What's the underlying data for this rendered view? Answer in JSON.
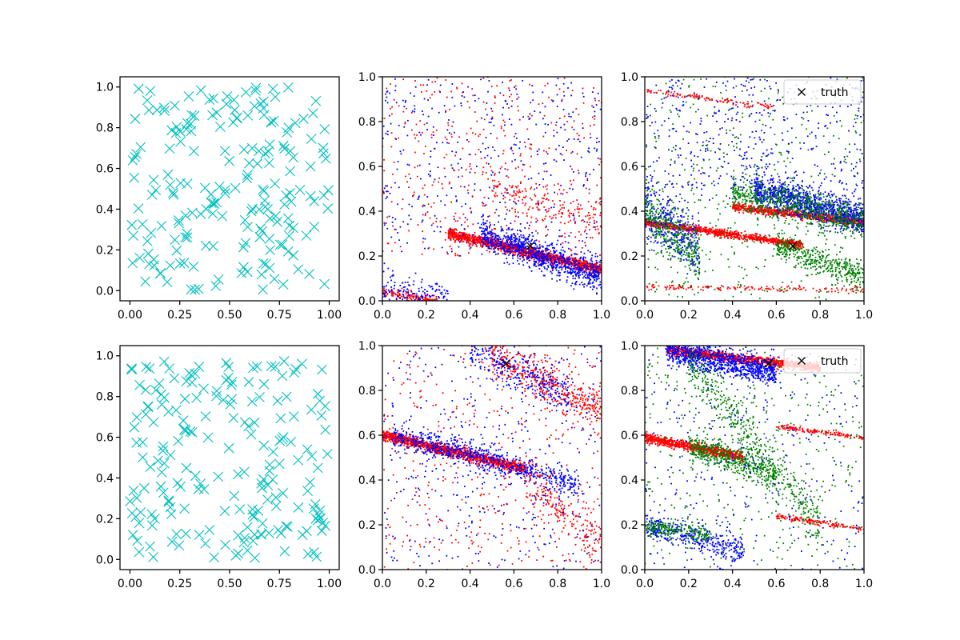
{
  "figure": {
    "colors": {
      "uniform": "#00bfbf",
      "red": "#ff0000",
      "blue": "#0000ff",
      "green": "#008000",
      "truth": "#000000"
    }
  },
  "chart_data": [
    {
      "id": "top-left",
      "type": "scatter",
      "title": "",
      "xlabel": "",
      "ylabel": "",
      "xlim": [
        -0.05,
        1.05
      ],
      "ylim": [
        -0.05,
        1.05
      ],
      "xticks": [
        "0.00",
        "0.25",
        "0.50",
        "0.75",
        "1.00"
      ],
      "yticks": [
        "0.0",
        "0.2",
        "0.4",
        "0.6",
        "0.8",
        "1.0"
      ],
      "marker": "x",
      "grid": false,
      "samples": {
        "distribution": "uniform",
        "count": 200,
        "x_range": [
          0,
          1
        ],
        "y_range": [
          0,
          1
        ],
        "color": "uniform"
      }
    },
    {
      "id": "top-middle",
      "type": "scatter",
      "title": "",
      "xlabel": "",
      "ylabel": "",
      "xlim": [
        0,
        1
      ],
      "ylim": [
        0,
        1
      ],
      "xticks": [
        "0.0",
        "0.2",
        "0.4",
        "0.6",
        "0.8",
        "1.0"
      ],
      "yticks": [
        "0.0",
        "0.2",
        "0.4",
        "0.6",
        "0.8",
        "1.0"
      ],
      "marker": "point",
      "grid": false,
      "truth": {
        "x": 0.675,
        "y": 0.245,
        "marker": "x"
      },
      "clusters": [
        {
          "color": "red",
          "count": 1400,
          "line": [
            0.3,
            0.3,
            1.0,
            0.14
          ],
          "spread": 0.012
        },
        {
          "color": "blue",
          "count": 900,
          "line": [
            0.45,
            0.3,
            1.0,
            0.1
          ],
          "spread": 0.035
        },
        {
          "color": "red",
          "count": 150,
          "line": [
            0.0,
            0.04,
            0.25,
            0.0
          ],
          "spread": 0.012
        },
        {
          "color": "blue",
          "count": 180,
          "line": [
            0.0,
            0.05,
            0.3,
            0.0
          ],
          "spread": 0.04
        },
        {
          "color": "red",
          "count": 180,
          "line": [
            0.5,
            0.5,
            1.0,
            0.35
          ],
          "spread": 0.04
        },
        {
          "color": "blue",
          "count": 450,
          "uniform": [
            0,
            1,
            0.2,
            1
          ]
        },
        {
          "color": "red",
          "count": 400,
          "uniform": [
            0,
            1,
            0.2,
            1
          ]
        }
      ]
    },
    {
      "id": "top-right",
      "type": "scatter",
      "title": "",
      "xlabel": "",
      "ylabel": "",
      "xlim": [
        0,
        1
      ],
      "ylim": [
        0,
        1
      ],
      "xticks": [
        "0.0",
        "0.2",
        "0.4",
        "0.6",
        "0.8",
        "1.0"
      ],
      "yticks": [
        "0.0",
        "0.2",
        "0.4",
        "0.6",
        "0.8",
        "1.0"
      ],
      "marker": "point",
      "grid": false,
      "legend": {
        "label": "truth",
        "placement": "upper-right"
      },
      "truth": {
        "x": 0.675,
        "y": 0.245,
        "marker": "x"
      },
      "clusters": [
        {
          "color": "red",
          "count": 900,
          "line": [
            0.0,
            0.35,
            0.72,
            0.25
          ],
          "spread": 0.008
        },
        {
          "color": "red",
          "count": 800,
          "line": [
            0.4,
            0.42,
            1.0,
            0.35
          ],
          "spread": 0.009
        },
        {
          "color": "red",
          "count": 150,
          "line": [
            0.0,
            0.06,
            1.0,
            0.05
          ],
          "spread": 0.006
        },
        {
          "color": "red",
          "count": 120,
          "line": [
            0.0,
            0.94,
            0.6,
            0.86
          ],
          "spread": 0.006
        },
        {
          "color": "blue",
          "count": 1000,
          "line": [
            0.5,
            0.5,
            1.0,
            0.36
          ],
          "spread": 0.035
        },
        {
          "color": "green",
          "count": 700,
          "line": [
            0.4,
            0.48,
            1.0,
            0.36
          ],
          "spread": 0.04
        },
        {
          "color": "blue",
          "count": 350,
          "line": [
            0.0,
            0.4,
            0.25,
            0.25
          ],
          "spread": 0.06
        },
        {
          "color": "green",
          "count": 350,
          "line": [
            0.0,
            0.38,
            0.25,
            0.2
          ],
          "spread": 0.06
        },
        {
          "color": "green",
          "count": 400,
          "line": [
            0.6,
            0.25,
            1.0,
            0.1
          ],
          "spread": 0.03
        },
        {
          "color": "green",
          "count": 450,
          "uniform": [
            0,
            1,
            0,
            1
          ]
        },
        {
          "color": "blue",
          "count": 450,
          "uniform": [
            0,
            1,
            0.45,
            1
          ]
        }
      ]
    },
    {
      "id": "bottom-left",
      "type": "scatter",
      "title": "",
      "xlabel": "",
      "ylabel": "",
      "xlim": [
        -0.05,
        1.05
      ],
      "ylim": [
        -0.05,
        1.05
      ],
      "xticks": [
        "0.00",
        "0.25",
        "0.50",
        "0.75",
        "1.00"
      ],
      "yticks": [
        "0.0",
        "0.2",
        "0.4",
        "0.6",
        "0.8",
        "1.0"
      ],
      "marker": "x",
      "grid": false,
      "samples": {
        "distribution": "uniform",
        "count": 200,
        "x_range": [
          0,
          1
        ],
        "y_range": [
          0,
          1
        ],
        "color": "uniform"
      }
    },
    {
      "id": "bottom-middle",
      "type": "scatter",
      "title": "",
      "xlabel": "",
      "ylabel": "",
      "xlim": [
        0,
        1
      ],
      "ylim": [
        0,
        1
      ],
      "xticks": [
        "0.0",
        "0.2",
        "0.4",
        "0.6",
        "0.8",
        "1.0"
      ],
      "yticks": [
        "0.0",
        "0.2",
        "0.4",
        "0.6",
        "0.8",
        "1.0"
      ],
      "marker": "point",
      "grid": false,
      "truth": {
        "x": 0.565,
        "y": 0.92,
        "marker": "x"
      },
      "clusters": [
        {
          "color": "red",
          "count": 1200,
          "line": [
            0.0,
            0.6,
            0.65,
            0.45
          ],
          "spread": 0.012
        },
        {
          "color": "blue",
          "count": 700,
          "line": [
            0.05,
            0.6,
            0.9,
            0.38
          ],
          "spread": 0.03
        },
        {
          "color": "red",
          "count": 450,
          "line": [
            0.5,
            0.96,
            1.0,
            0.7
          ],
          "spread": 0.05
        },
        {
          "color": "blue",
          "count": 300,
          "line": [
            0.4,
            0.98,
            0.85,
            0.78
          ],
          "spread": 0.045
        },
        {
          "color": "red",
          "count": 200,
          "line": [
            0.65,
            0.4,
            1.0,
            0.12
          ],
          "spread": 0.05
        },
        {
          "color": "blue",
          "count": 400,
          "uniform": [
            0,
            1,
            0,
            1
          ]
        },
        {
          "color": "red",
          "count": 400,
          "uniform": [
            0,
            1,
            0,
            1
          ]
        }
      ]
    },
    {
      "id": "bottom-right",
      "type": "scatter",
      "title": "",
      "xlabel": "",
      "ylabel": "",
      "xlim": [
        0,
        1
      ],
      "ylim": [
        0,
        1
      ],
      "xticks": [
        "0.0",
        "0.2",
        "0.4",
        "0.6",
        "0.8",
        "1.0"
      ],
      "yticks": [
        "0.0",
        "0.2",
        "0.4",
        "0.6",
        "0.8",
        "1.0"
      ],
      "marker": "point",
      "grid": false,
      "legend": {
        "label": "truth",
        "placement": "upper-right"
      },
      "truth": {
        "x": 0.565,
        "y": 0.92,
        "marker": "x"
      },
      "clusters": [
        {
          "color": "red",
          "count": 1000,
          "line": [
            0.1,
            0.98,
            0.8,
            0.9
          ],
          "spread": 0.01
        },
        {
          "color": "blue",
          "count": 900,
          "line": [
            0.1,
            0.98,
            0.6,
            0.88
          ],
          "spread": 0.03
        },
        {
          "color": "red",
          "count": 800,
          "line": [
            0.0,
            0.59,
            0.45,
            0.5
          ],
          "spread": 0.01
        },
        {
          "color": "green",
          "count": 500,
          "line": [
            0.2,
            0.56,
            0.6,
            0.42
          ],
          "spread": 0.03
        },
        {
          "color": "blue",
          "count": 350,
          "line": [
            0.0,
            0.2,
            0.45,
            0.08
          ],
          "spread": 0.03
        },
        {
          "color": "green",
          "count": 200,
          "line": [
            0.0,
            0.19,
            0.3,
            0.15
          ],
          "spread": 0.02
        },
        {
          "color": "red",
          "count": 150,
          "line": [
            0.6,
            0.24,
            1.0,
            0.18
          ],
          "spread": 0.006
        },
        {
          "color": "red",
          "count": 150,
          "line": [
            0.6,
            0.64,
            1.0,
            0.59
          ],
          "spread": 0.006
        },
        {
          "color": "green",
          "count": 500,
          "line": [
            0.2,
            0.92,
            0.8,
            0.2
          ],
          "spread": 0.06
        },
        {
          "color": "green",
          "count": 400,
          "uniform": [
            0,
            1,
            0,
            1
          ]
        },
        {
          "color": "blue",
          "count": 300,
          "uniform": [
            0,
            1,
            0,
            1
          ]
        }
      ]
    }
  ]
}
